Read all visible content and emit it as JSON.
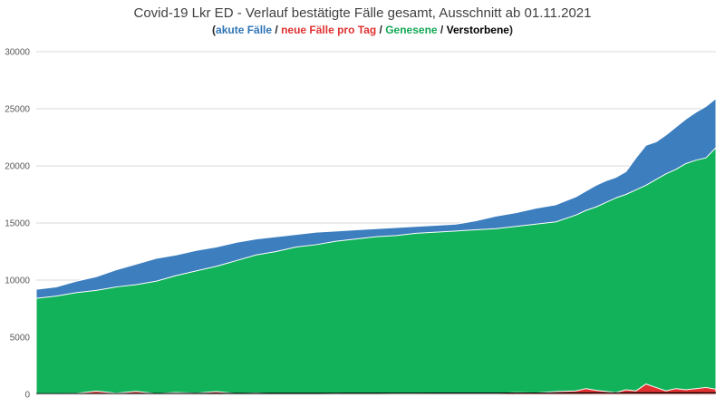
{
  "chart_data": {
    "type": "area",
    "title": "Covid-19 Lkr ED - Verlauf bestätigte Fälle gesamt, Ausschnitt ab 01.11.2021",
    "subtitle": {
      "open": "(",
      "sep1": " / ",
      "sep2": " / ",
      "sep3": " / ",
      "close": ")"
    },
    "xlabel": "",
    "ylabel": "",
    "ylim": [
      0,
      30000
    ],
    "yticks": [
      "0",
      "5000",
      "10000",
      "15000",
      "20000",
      "25000",
      "30000"
    ],
    "grid": true,
    "legend": "top",
    "colors": {
      "akute": "#3d7ebf",
      "genesene": "#12b25a",
      "neue": "#e03131",
      "verstorbene": "#000000"
    },
    "x": [
      0,
      4,
      8,
      12,
      16,
      20,
      24,
      28,
      32,
      36,
      40,
      44,
      48,
      52,
      56,
      60,
      64,
      68,
      72,
      76,
      80,
      84,
      88,
      92,
      96,
      100,
      104,
      108,
      110,
      112,
      114,
      116,
      118,
      120,
      122,
      124,
      126,
      128,
      130,
      132,
      134,
      136
    ],
    "series": [
      {
        "name": "akute Fälle",
        "values": [
          9200,
          9400,
          9900,
          10300,
          10900,
          11400,
          11900,
          12200,
          12600,
          12900,
          13300,
          13600,
          13800,
          14000,
          14200,
          14300,
          14400,
          14500,
          14600,
          14700,
          14800,
          14900,
          15200,
          15600,
          15900,
          16300,
          16600,
          17300,
          17800,
          18300,
          18700,
          19000,
          19500,
          20700,
          21800,
          22100,
          22700,
          23400,
          24100,
          24700,
          25200,
          25900
        ]
      },
      {
        "name": "Genesene",
        "values": [
          8400,
          8600,
          8900,
          9100,
          9400,
          9600,
          9900,
          10400,
          10800,
          11200,
          11700,
          12200,
          12500,
          12900,
          13100,
          13400,
          13600,
          13800,
          13900,
          14100,
          14200,
          14300,
          14400,
          14500,
          14700,
          14900,
          15100,
          15700,
          16100,
          16400,
          16800,
          17200,
          17500,
          17900,
          18300,
          18800,
          19300,
          19700,
          20200,
          20500,
          20700,
          21600
        ]
      },
      {
        "name": "neue Fälle pro Tag",
        "values": [
          0,
          20,
          80,
          280,
          100,
          260,
          60,
          160,
          100,
          240,
          60,
          120,
          40,
          80,
          30,
          60,
          50,
          40,
          60,
          80,
          40,
          60,
          50,
          80,
          150,
          120,
          240,
          300,
          500,
          350,
          250,
          150,
          400,
          300,
          900,
          600,
          300,
          500,
          400,
          500,
          600,
          450
        ]
      },
      {
        "name": "Verstorbene",
        "values": [
          50,
          55,
          60,
          62,
          65,
          68,
          70,
          75,
          78,
          80,
          82,
          85,
          88,
          90,
          92,
          95,
          98,
          100,
          102,
          104,
          106,
          108,
          110,
          112,
          114,
          116,
          118,
          120,
          121,
          122,
          123,
          124,
          125,
          126,
          127,
          128,
          129,
          130,
          131,
          132,
          133,
          134
        ]
      }
    ]
  }
}
